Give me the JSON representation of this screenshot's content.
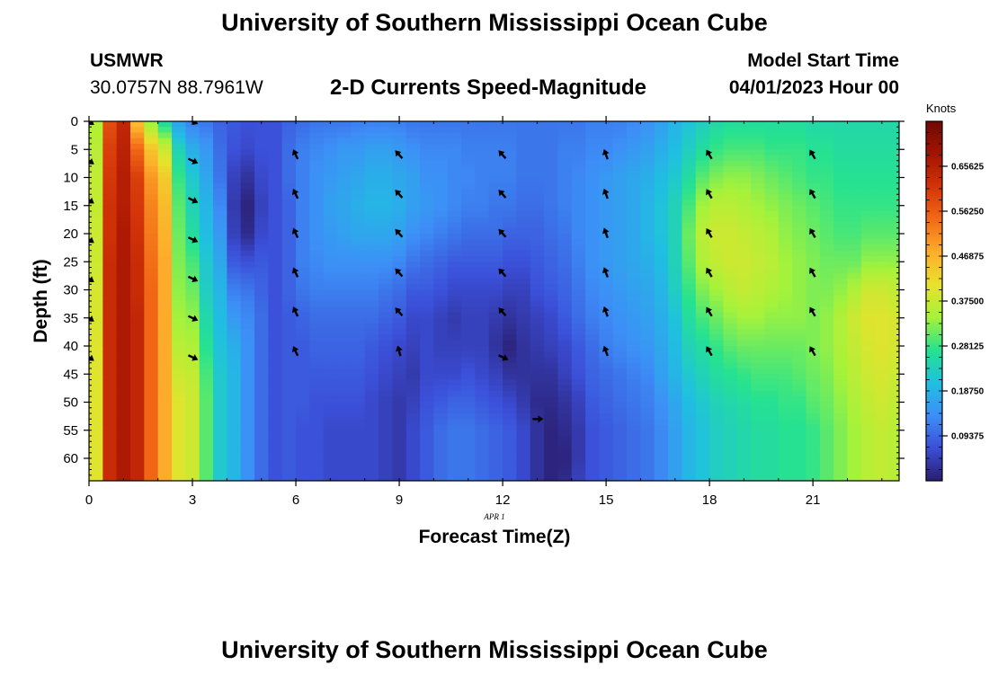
{
  "header": {
    "title": "University of Southern Mississippi Ocean Cube",
    "station": "USMWR",
    "coords": "30.0757N  88.7961W",
    "subtitle": "2-D Currents Speed-Magnitude",
    "model_start_label": "Model Start Time",
    "model_start_value": "04/01/2023 Hour 00"
  },
  "footer": {
    "title": "University of Southern Mississippi Ocean Cube"
  },
  "chart_data": {
    "type": "heatmap",
    "title": "2-D Currents Speed-Magnitude",
    "xlabel": "Forecast Time(Z)",
    "ylabel": "Depth (ft)",
    "date_label": "APR 1",
    "xlim": [
      0,
      23.5
    ],
    "ylim": [
      0,
      64
    ],
    "x_ticks": [
      "0",
      "3",
      "6",
      "9",
      "12",
      "15",
      "18",
      "21"
    ],
    "y_ticks": [
      "0",
      "5",
      "10",
      "15",
      "20",
      "25",
      "30",
      "35",
      "40",
      "45",
      "50",
      "55",
      "60"
    ],
    "colorbar": {
      "unit": "Knots",
      "range": [
        0.0,
        0.75
      ],
      "tick_labels": [
        "0.09375",
        "0.18750",
        "0.28125",
        "0.37500",
        "0.46875",
        "0.56250",
        "0.65625"
      ],
      "colors": [
        "#2a1d6e",
        "#3b4fd8",
        "#3d8ff7",
        "#1fc0e0",
        "#26e28f",
        "#a6f23a",
        "#e8e22c",
        "#fdae2b",
        "#f26a16",
        "#d33408",
        "#a51302",
        "#6e0a05"
      ]
    },
    "x": [
      0.0,
      0.4,
      0.8,
      1.2,
      1.6,
      2.0,
      2.4,
      2.8,
      3.2,
      3.6,
      4.0,
      4.4,
      4.8,
      5.2,
      5.6,
      6.0,
      6.4,
      6.8,
      7.2,
      7.6,
      8.0,
      8.4,
      8.8,
      9.2,
      9.6,
      10.0,
      10.4,
      10.8,
      11.2,
      11.6,
      12.0,
      12.4,
      12.8,
      13.2,
      13.6,
      14.0,
      14.4,
      14.8,
      15.2,
      15.6,
      16.0,
      16.4,
      16.8,
      17.2,
      17.6,
      18.0,
      18.4,
      18.8,
      19.2,
      19.6,
      20.0,
      20.4,
      20.8,
      21.2,
      21.6,
      22.0,
      22.4,
      22.8,
      23.2
    ],
    "depth_profile_ft": [
      0,
      5,
      10,
      15,
      20,
      25,
      30,
      35,
      40,
      45,
      50,
      55,
      60,
      64
    ],
    "speed_profiles": [
      [
        0.35,
        0.36,
        0.37,
        0.37,
        0.38,
        0.38,
        0.39,
        0.39,
        0.4,
        0.4,
        0.4,
        0.4,
        0.4,
        0.4
      ],
      [
        0.58,
        0.6,
        0.61,
        0.62,
        0.62,
        0.63,
        0.63,
        0.63,
        0.63,
        0.63,
        0.63,
        0.63,
        0.63,
        0.63
      ],
      [
        0.64,
        0.65,
        0.66,
        0.66,
        0.67,
        0.67,
        0.67,
        0.67,
        0.67,
        0.67,
        0.67,
        0.67,
        0.67,
        0.67
      ],
      [
        0.45,
        0.55,
        0.6,
        0.61,
        0.62,
        0.63,
        0.63,
        0.64,
        0.64,
        0.64,
        0.64,
        0.64,
        0.64,
        0.64
      ],
      [
        0.33,
        0.45,
        0.5,
        0.52,
        0.53,
        0.54,
        0.55,
        0.55,
        0.55,
        0.55,
        0.55,
        0.55,
        0.55,
        0.55
      ],
      [
        0.25,
        0.38,
        0.44,
        0.46,
        0.47,
        0.48,
        0.48,
        0.48,
        0.48,
        0.48,
        0.48,
        0.48,
        0.48,
        0.48
      ],
      [
        0.16,
        0.24,
        0.28,
        0.3,
        0.31,
        0.32,
        0.33,
        0.34,
        0.36,
        0.38,
        0.4,
        0.4,
        0.4,
        0.4
      ],
      [
        0.12,
        0.18,
        0.22,
        0.24,
        0.26,
        0.29,
        0.31,
        0.33,
        0.35,
        0.37,
        0.38,
        0.38,
        0.38,
        0.38
      ],
      [
        0.11,
        0.15,
        0.17,
        0.19,
        0.2,
        0.22,
        0.23,
        0.25,
        0.27,
        0.29,
        0.3,
        0.3,
        0.3,
        0.3
      ],
      [
        0.09,
        0.1,
        0.11,
        0.13,
        0.15,
        0.17,
        0.19,
        0.2,
        0.21,
        0.22,
        0.22,
        0.22,
        0.22,
        0.22
      ],
      [
        0.08,
        0.07,
        0.05,
        0.04,
        0.05,
        0.08,
        0.12,
        0.15,
        0.18,
        0.19,
        0.19,
        0.19,
        0.19,
        0.19
      ],
      [
        0.07,
        0.06,
        0.03,
        0.01,
        0.02,
        0.07,
        0.11,
        0.13,
        0.14,
        0.14,
        0.14,
        0.14,
        0.14,
        0.14
      ],
      [
        0.07,
        0.07,
        0.06,
        0.05,
        0.06,
        0.08,
        0.09,
        0.1,
        0.1,
        0.1,
        0.1,
        0.1,
        0.1,
        0.1
      ],
      [
        0.07,
        0.07,
        0.07,
        0.07,
        0.07,
        0.07,
        0.07,
        0.07,
        0.07,
        0.07,
        0.07,
        0.07,
        0.07,
        0.07
      ],
      [
        0.09,
        0.1,
        0.1,
        0.09,
        0.09,
        0.09,
        0.09,
        0.08,
        0.08,
        0.08,
        0.08,
        0.08,
        0.08,
        0.08
      ],
      [
        0.1,
        0.12,
        0.12,
        0.12,
        0.12,
        0.12,
        0.11,
        0.09,
        0.08,
        0.08,
        0.08,
        0.07,
        0.07,
        0.07
      ],
      [
        0.11,
        0.13,
        0.14,
        0.14,
        0.14,
        0.13,
        0.12,
        0.1,
        0.09,
        0.08,
        0.07,
        0.07,
        0.07,
        0.07
      ],
      [
        0.11,
        0.14,
        0.15,
        0.16,
        0.15,
        0.14,
        0.12,
        0.1,
        0.09,
        0.08,
        0.07,
        0.06,
        0.06,
        0.06
      ],
      [
        0.11,
        0.15,
        0.16,
        0.17,
        0.16,
        0.14,
        0.12,
        0.1,
        0.09,
        0.08,
        0.07,
        0.06,
        0.06,
        0.06
      ],
      [
        0.12,
        0.15,
        0.17,
        0.18,
        0.17,
        0.14,
        0.12,
        0.1,
        0.09,
        0.08,
        0.07,
        0.06,
        0.06,
        0.06
      ],
      [
        0.12,
        0.16,
        0.18,
        0.19,
        0.17,
        0.14,
        0.12,
        0.1,
        0.08,
        0.07,
        0.06,
        0.06,
        0.06,
        0.06
      ],
      [
        0.12,
        0.16,
        0.18,
        0.19,
        0.17,
        0.14,
        0.11,
        0.09,
        0.07,
        0.06,
        0.05,
        0.05,
        0.05,
        0.05
      ],
      [
        0.12,
        0.15,
        0.17,
        0.18,
        0.16,
        0.13,
        0.1,
        0.08,
        0.06,
        0.05,
        0.04,
        0.04,
        0.04,
        0.04
      ],
      [
        0.11,
        0.14,
        0.16,
        0.16,
        0.14,
        0.11,
        0.08,
        0.06,
        0.05,
        0.04,
        0.05,
        0.06,
        0.06,
        0.06
      ],
      [
        0.11,
        0.13,
        0.14,
        0.15,
        0.13,
        0.1,
        0.08,
        0.06,
        0.06,
        0.06,
        0.07,
        0.08,
        0.08,
        0.08
      ],
      [
        0.11,
        0.13,
        0.14,
        0.14,
        0.12,
        0.09,
        0.07,
        0.05,
        0.05,
        0.06,
        0.08,
        0.1,
        0.1,
        0.1
      ],
      [
        0.11,
        0.13,
        0.13,
        0.13,
        0.11,
        0.08,
        0.06,
        0.04,
        0.05,
        0.06,
        0.09,
        0.11,
        0.11,
        0.11
      ],
      [
        0.11,
        0.12,
        0.13,
        0.12,
        0.1,
        0.08,
        0.06,
        0.05,
        0.05,
        0.07,
        0.09,
        0.11,
        0.11,
        0.11
      ],
      [
        0.11,
        0.12,
        0.12,
        0.12,
        0.1,
        0.08,
        0.06,
        0.05,
        0.05,
        0.06,
        0.08,
        0.1,
        0.1,
        0.1
      ],
      [
        0.11,
        0.12,
        0.12,
        0.11,
        0.1,
        0.08,
        0.06,
        0.04,
        0.03,
        0.05,
        0.07,
        0.09,
        0.09,
        0.09
      ],
      [
        0.11,
        0.12,
        0.12,
        0.11,
        0.09,
        0.07,
        0.05,
        0.03,
        0.01,
        0.03,
        0.06,
        0.08,
        0.08,
        0.08
      ],
      [
        0.11,
        0.11,
        0.11,
        0.1,
        0.09,
        0.07,
        0.05,
        0.04,
        0.03,
        0.03,
        0.04,
        0.06,
        0.06,
        0.06
      ],
      [
        0.11,
        0.11,
        0.11,
        0.1,
        0.09,
        0.08,
        0.07,
        0.05,
        0.04,
        0.03,
        0.02,
        0.03,
        0.03,
        0.03
      ],
      [
        0.11,
        0.11,
        0.11,
        0.11,
        0.1,
        0.09,
        0.08,
        0.06,
        0.05,
        0.03,
        0.02,
        0.01,
        0.01,
        0.01
      ],
      [
        0.11,
        0.12,
        0.12,
        0.12,
        0.11,
        0.1,
        0.09,
        0.08,
        0.06,
        0.05,
        0.03,
        0.02,
        0.01,
        0.02
      ],
      [
        0.11,
        0.12,
        0.13,
        0.13,
        0.13,
        0.12,
        0.11,
        0.1,
        0.08,
        0.07,
        0.05,
        0.04,
        0.04,
        0.05
      ],
      [
        0.12,
        0.13,
        0.14,
        0.14,
        0.14,
        0.14,
        0.13,
        0.12,
        0.1,
        0.09,
        0.08,
        0.07,
        0.07,
        0.07
      ],
      [
        0.12,
        0.13,
        0.15,
        0.15,
        0.15,
        0.15,
        0.14,
        0.13,
        0.12,
        0.1,
        0.09,
        0.08,
        0.08,
        0.08
      ],
      [
        0.12,
        0.14,
        0.16,
        0.16,
        0.16,
        0.16,
        0.15,
        0.14,
        0.13,
        0.11,
        0.1,
        0.09,
        0.09,
        0.09
      ],
      [
        0.13,
        0.15,
        0.17,
        0.17,
        0.17,
        0.17,
        0.16,
        0.15,
        0.14,
        0.12,
        0.11,
        0.1,
        0.1,
        0.1
      ],
      [
        0.14,
        0.16,
        0.18,
        0.19,
        0.19,
        0.18,
        0.17,
        0.16,
        0.15,
        0.13,
        0.12,
        0.11,
        0.11,
        0.11
      ],
      [
        0.16,
        0.18,
        0.2,
        0.21,
        0.21,
        0.2,
        0.19,
        0.18,
        0.17,
        0.16,
        0.14,
        0.13,
        0.13,
        0.13
      ],
      [
        0.19,
        0.2,
        0.22,
        0.24,
        0.24,
        0.24,
        0.23,
        0.21,
        0.2,
        0.19,
        0.17,
        0.16,
        0.16,
        0.16
      ],
      [
        0.21,
        0.23,
        0.26,
        0.29,
        0.31,
        0.3,
        0.28,
        0.26,
        0.24,
        0.22,
        0.2,
        0.19,
        0.19,
        0.19
      ],
      [
        0.23,
        0.26,
        0.3,
        0.34,
        0.36,
        0.35,
        0.32,
        0.29,
        0.26,
        0.24,
        0.22,
        0.21,
        0.21,
        0.21
      ],
      [
        0.25,
        0.28,
        0.32,
        0.36,
        0.38,
        0.37,
        0.34,
        0.31,
        0.28,
        0.26,
        0.24,
        0.23,
        0.23,
        0.23
      ],
      [
        0.26,
        0.29,
        0.33,
        0.36,
        0.38,
        0.38,
        0.36,
        0.33,
        0.3,
        0.27,
        0.25,
        0.24,
        0.24,
        0.24
      ],
      [
        0.26,
        0.29,
        0.33,
        0.35,
        0.37,
        0.38,
        0.37,
        0.34,
        0.31,
        0.28,
        0.26,
        0.25,
        0.25,
        0.25
      ],
      [
        0.26,
        0.29,
        0.32,
        0.34,
        0.36,
        0.37,
        0.36,
        0.34,
        0.31,
        0.29,
        0.27,
        0.26,
        0.26,
        0.26
      ],
      [
        0.26,
        0.28,
        0.31,
        0.33,
        0.35,
        0.36,
        0.35,
        0.33,
        0.31,
        0.29,
        0.27,
        0.26,
        0.26,
        0.26
      ],
      [
        0.26,
        0.28,
        0.3,
        0.32,
        0.33,
        0.34,
        0.34,
        0.33,
        0.31,
        0.29,
        0.28,
        0.27,
        0.27,
        0.27
      ],
      [
        0.26,
        0.28,
        0.29,
        0.31,
        0.32,
        0.33,
        0.33,
        0.33,
        0.31,
        0.3,
        0.28,
        0.27,
        0.27,
        0.27
      ],
      [
        0.25,
        0.27,
        0.28,
        0.3,
        0.31,
        0.32,
        0.32,
        0.32,
        0.32,
        0.31,
        0.3,
        0.28,
        0.28,
        0.28
      ],
      [
        0.25,
        0.27,
        0.28,
        0.29,
        0.3,
        0.31,
        0.32,
        0.33,
        0.33,
        0.32,
        0.31,
        0.3,
        0.3,
        0.3
      ],
      [
        0.25,
        0.26,
        0.27,
        0.28,
        0.29,
        0.31,
        0.33,
        0.35,
        0.35,
        0.34,
        0.33,
        0.32,
        0.32,
        0.32
      ],
      [
        0.25,
        0.26,
        0.27,
        0.28,
        0.29,
        0.31,
        0.35,
        0.38,
        0.37,
        0.36,
        0.35,
        0.34,
        0.34,
        0.34
      ],
      [
        0.25,
        0.26,
        0.27,
        0.28,
        0.3,
        0.33,
        0.38,
        0.4,
        0.39,
        0.38,
        0.37,
        0.36,
        0.36,
        0.36
      ],
      [
        0.25,
        0.26,
        0.27,
        0.28,
        0.3,
        0.33,
        0.38,
        0.4,
        0.4,
        0.39,
        0.38,
        0.37,
        0.37,
        0.37
      ],
      [
        0.25,
        0.26,
        0.27,
        0.28,
        0.3,
        0.33,
        0.37,
        0.39,
        0.39,
        0.38,
        0.37,
        0.36,
        0.36,
        0.36
      ]
    ],
    "vectors": [
      {
        "t": 0,
        "depths": [
          0,
          7,
          14,
          21,
          28,
          35,
          42
        ],
        "dir_deg": 125
      },
      {
        "t": 3,
        "depths": [
          0,
          7,
          14,
          21,
          28,
          35,
          42
        ],
        "dir_deg": 115
      },
      {
        "t": 6,
        "depths": [
          6,
          13,
          20,
          27,
          34,
          41
        ],
        "dir_deg": 335
      },
      {
        "t": 9,
        "depths": [
          6,
          13,
          20,
          27,
          34
        ],
        "dir_deg": 318
      },
      {
        "t": 9,
        "depths": [
          41
        ],
        "dir_deg": 345
      },
      {
        "t": 12,
        "depths": [
          6,
          13,
          20,
          27,
          34
        ],
        "dir_deg": 318
      },
      {
        "t": 12,
        "depths": [
          42
        ],
        "dir_deg": 115
      },
      {
        "t": 13,
        "depths": [
          53
        ],
        "dir_deg": 90
      },
      {
        "t": 15,
        "depths": [
          6,
          13,
          20,
          27,
          34,
          41
        ],
        "dir_deg": 340
      },
      {
        "t": 18,
        "depths": [
          6,
          13,
          20,
          27,
          34,
          41
        ],
        "dir_deg": 330
      },
      {
        "t": 21,
        "depths": [
          6,
          13,
          20,
          27,
          34,
          41
        ],
        "dir_deg": 330
      }
    ]
  }
}
